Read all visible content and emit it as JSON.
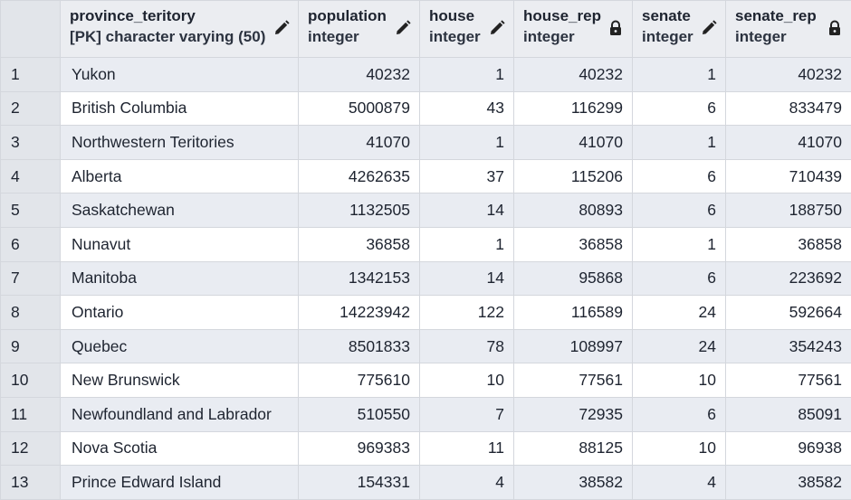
{
  "columns": [
    {
      "name": "province_teritory",
      "type": "[PK] character varying (50)",
      "icon": "pencil-icon"
    },
    {
      "name": "population",
      "type": "integer",
      "icon": "pencil-icon"
    },
    {
      "name": "house",
      "type": "integer",
      "icon": "pencil-icon"
    },
    {
      "name": "house_rep",
      "type": "integer",
      "icon": "lock-icon"
    },
    {
      "name": "senate",
      "type": "integer",
      "icon": "pencil-icon"
    },
    {
      "name": "senate_rep",
      "type": "integer",
      "icon": "lock-icon"
    }
  ],
  "rows": [
    {
      "n": "1",
      "province_teritory": "Yukon",
      "population": "40232",
      "house": "1",
      "house_rep": "40232",
      "senate": "1",
      "senate_rep": "40232"
    },
    {
      "n": "2",
      "province_teritory": "British Columbia",
      "population": "5000879",
      "house": "43",
      "house_rep": "116299",
      "senate": "6",
      "senate_rep": "833479"
    },
    {
      "n": "3",
      "province_teritory": "Northwestern Teritories",
      "population": "41070",
      "house": "1",
      "house_rep": "41070",
      "senate": "1",
      "senate_rep": "41070"
    },
    {
      "n": "4",
      "province_teritory": "Alberta",
      "population": "4262635",
      "house": "37",
      "house_rep": "115206",
      "senate": "6",
      "senate_rep": "710439"
    },
    {
      "n": "5",
      "province_teritory": "Saskatchewan",
      "population": "1132505",
      "house": "14",
      "house_rep": "80893",
      "senate": "6",
      "senate_rep": "188750"
    },
    {
      "n": "6",
      "province_teritory": "Nunavut",
      "population": "36858",
      "house": "1",
      "house_rep": "36858",
      "senate": "1",
      "senate_rep": "36858"
    },
    {
      "n": "7",
      "province_teritory": "Manitoba",
      "population": "1342153",
      "house": "14",
      "house_rep": "95868",
      "senate": "6",
      "senate_rep": "223692"
    },
    {
      "n": "8",
      "province_teritory": "Ontario",
      "population": "14223942",
      "house": "122",
      "house_rep": "116589",
      "senate": "24",
      "senate_rep": "592664"
    },
    {
      "n": "9",
      "province_teritory": "Quebec",
      "population": "8501833",
      "house": "78",
      "house_rep": "108997",
      "senate": "24",
      "senate_rep": "354243"
    },
    {
      "n": "10",
      "province_teritory": "New Brunswick",
      "population": "775610",
      "house": "10",
      "house_rep": "77561",
      "senate": "10",
      "senate_rep": "77561"
    },
    {
      "n": "11",
      "province_teritory": "Newfoundland and Labrador",
      "population": "510550",
      "house": "7",
      "house_rep": "72935",
      "senate": "6",
      "senate_rep": "85091"
    },
    {
      "n": "12",
      "province_teritory": "Nova Scotia",
      "population": "969383",
      "house": "11",
      "house_rep": "88125",
      "senate": "10",
      "senate_rep": "96938"
    },
    {
      "n": "13",
      "province_teritory": "Prince Edward Island",
      "population": "154331",
      "house": "4",
      "house_rep": "38582",
      "senate": "4",
      "senate_rep": "38582"
    }
  ]
}
